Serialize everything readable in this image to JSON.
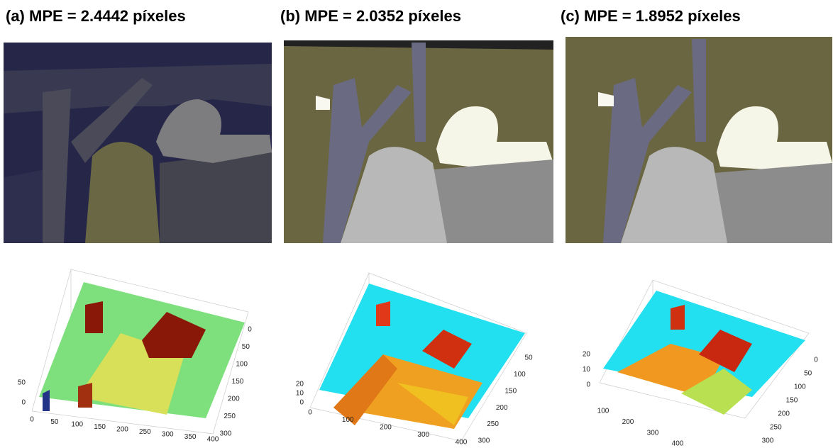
{
  "panels": [
    {
      "title": "(a) MPE = 2.4442 píxeles",
      "plot": {
        "x_ticks": [
          0,
          50,
          100,
          150,
          200,
          250,
          300,
          350,
          400
        ],
        "y_ticks": [
          0,
          50,
          100,
          150,
          200,
          250,
          300
        ],
        "z_ticks": [
          0,
          50
        ]
      }
    },
    {
      "title": "(b) MPE = 2.0352 píxeles",
      "plot": {
        "x_ticks": [
          0,
          100,
          200,
          300,
          400
        ],
        "y_ticks": [
          50,
          100,
          150,
          200,
          250,
          300
        ],
        "z_ticks": [
          0,
          10,
          20
        ]
      }
    },
    {
      "title": "(c) MPE = 1.8952 píxeles",
      "plot": {
        "x_ticks": [
          100,
          200,
          300,
          400
        ],
        "y_ticks": [
          0,
          50,
          100,
          150,
          200,
          250,
          300
        ],
        "z_ticks": [
          0,
          10,
          20
        ]
      }
    }
  ]
}
